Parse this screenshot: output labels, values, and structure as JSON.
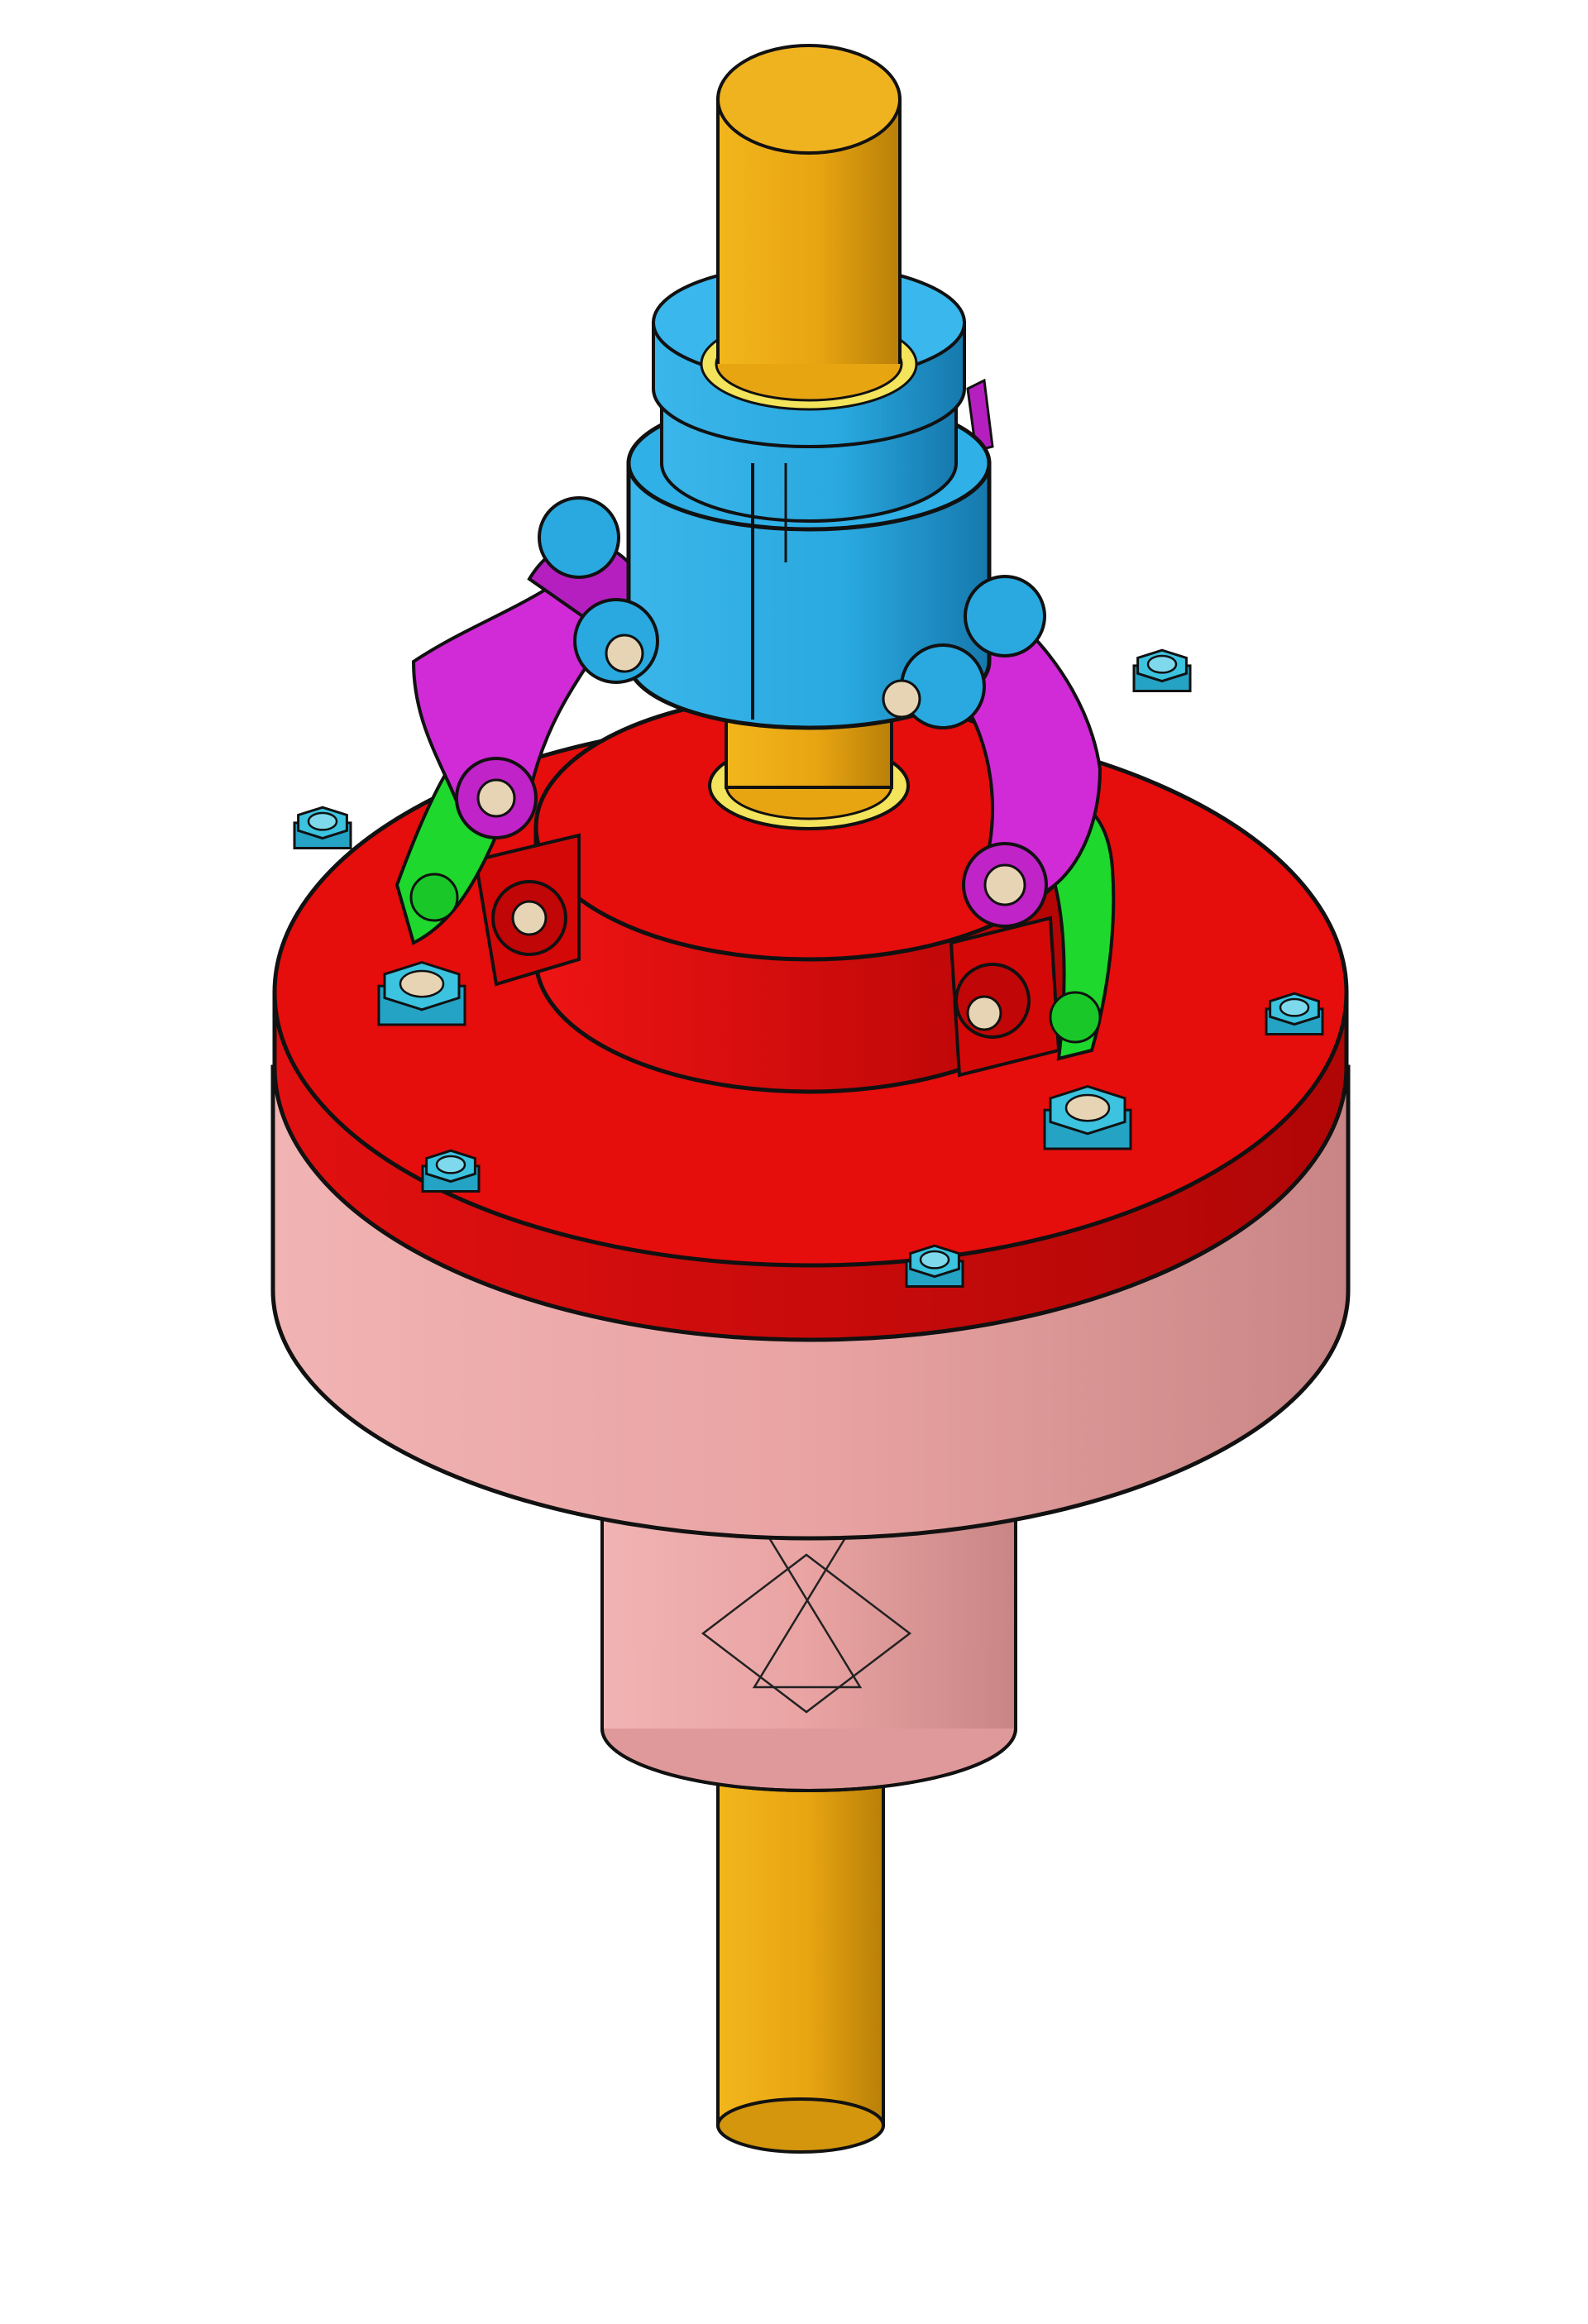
{
  "figure": {
    "kind": "CAD isometric assembly view",
    "colors": {
      "background": "#ffffff",
      "shaft": "#e8a512",
      "shaft_dark": "#b57d07",
      "collar": "#29a9e0",
      "collar_dark": "#1679ad",
      "flange": "#e00a0a",
      "flange_dark": "#a30303",
      "housing": "#e9a3a3",
      "housing_dark": "#c27878",
      "link_magenta": "#d12bd8",
      "link_green": "#19d829",
      "nut": "#3cc3e0",
      "bolt_head": "#e6d4b4",
      "bushing": "#f3e45b",
      "outline": "#111111"
    }
  }
}
